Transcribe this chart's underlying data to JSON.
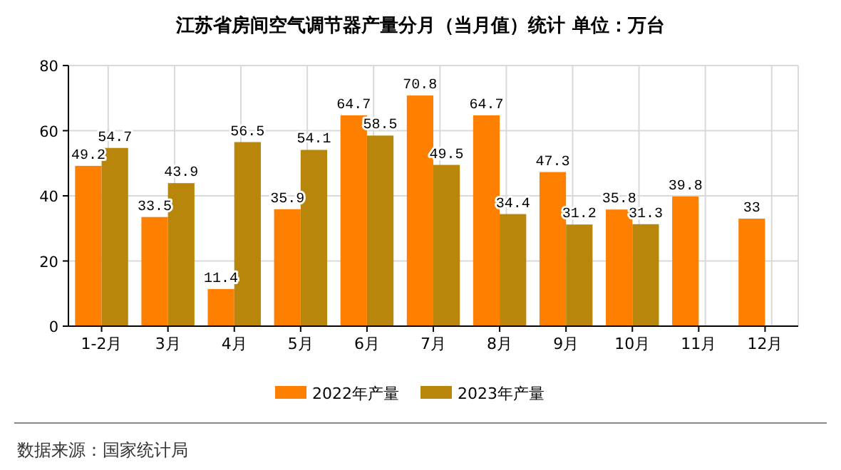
{
  "chart_data": {
    "type": "bar",
    "title": "江苏省房间空气调节器产量分月（当月值）统计 单位：万台",
    "categories": [
      "1-2月",
      "3月",
      "4月",
      "5月",
      "6月",
      "7月",
      "8月",
      "9月",
      "10月",
      "11月",
      "12月"
    ],
    "series": [
      {
        "name": "2022年产量",
        "color": "#ff7f00",
        "values": [
          49.2,
          33.5,
          11.4,
          35.9,
          64.7,
          70.8,
          64.7,
          47.3,
          35.8,
          39.8,
          33
        ]
      },
      {
        "name": "2023年产量",
        "color": "#b8860b",
        "values": [
          54.7,
          43.9,
          56.5,
          54.1,
          58.5,
          49.5,
          34.4,
          31.2,
          31.3,
          null,
          null
        ]
      }
    ],
    "ylim": [
      0,
      80
    ],
    "yticks": [
      0,
      20,
      40,
      60,
      80
    ],
    "grid": true,
    "legend": "bottom",
    "data_labels": true,
    "annotations": [
      "数据来源：国家统计局"
    ]
  }
}
